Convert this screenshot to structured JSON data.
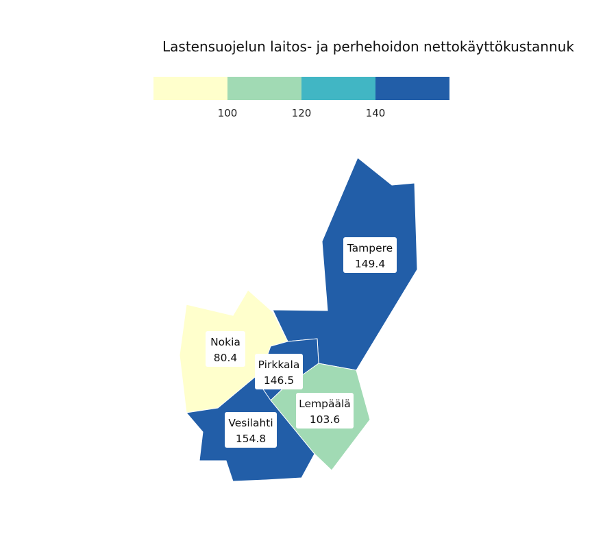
{
  "title": "Lastensuojelun laitos- ja perhehoidon nettokäyttökustannuk",
  "legend": {
    "colors": [
      "#FFFFCC",
      "#A1DAB4",
      "#41B6C4",
      "#225EA8"
    ],
    "breaks": [
      "100",
      "120",
      "140"
    ]
  },
  "regions": [
    {
      "id": "tampere",
      "name": "Tampere",
      "value": "149.4",
      "color": "#225EA8"
    },
    {
      "id": "nokia",
      "name": "Nokia",
      "value": "80.4",
      "color": "#FFFFCC"
    },
    {
      "id": "pirkkala",
      "name": "Pirkkala",
      "value": "146.5",
      "color": "#225EA8"
    },
    {
      "id": "lempaala",
      "name": "Lempäälä",
      "value": "103.6",
      "color": "#A1DAB4"
    },
    {
      "id": "vesilahti",
      "name": "Vesilahti",
      "value": "154.8",
      "color": "#225EA8"
    }
  ]
}
